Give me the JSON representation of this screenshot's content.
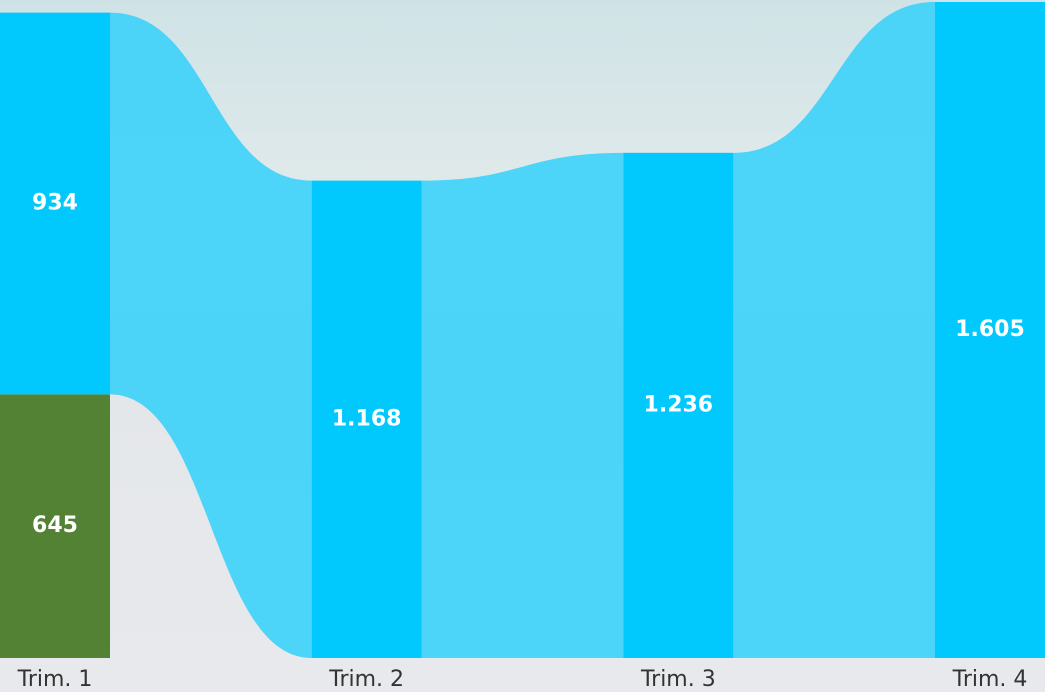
{
  "chart_data": {
    "type": "ribbon",
    "categories": [
      "Trim. 1",
      "Trim. 2",
      "Trim. 3",
      "Trim. 4"
    ],
    "series": [
      {
        "color": "#548235",
        "values": [
          645,
          null,
          null,
          null
        ],
        "value_labels": [
          "645",
          null,
          null,
          null
        ]
      },
      {
        "color": "#01c8fd",
        "values": [
          934,
          1168,
          1236,
          1605
        ],
        "value_labels": [
          "934",
          "1.168",
          "1.236",
          "1.605"
        ]
      }
    ],
    "ribbon_color": "#3fd3f8"
  }
}
